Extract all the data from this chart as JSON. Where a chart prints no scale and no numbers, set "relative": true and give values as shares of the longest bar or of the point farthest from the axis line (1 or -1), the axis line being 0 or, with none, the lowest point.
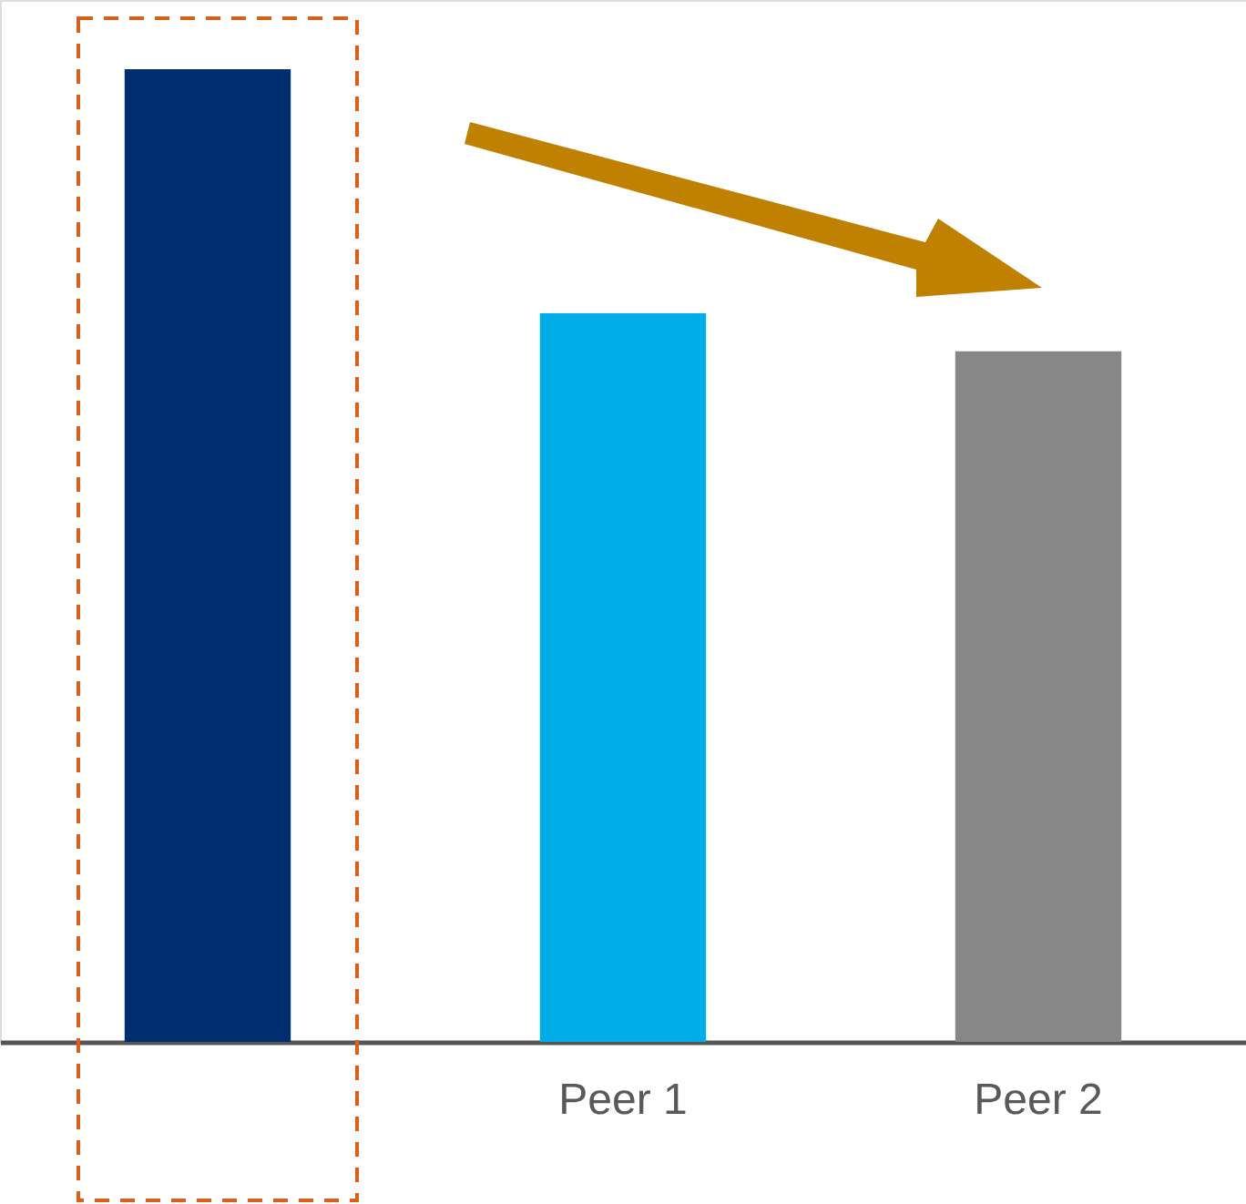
{
  "chart_data": {
    "type": "bar",
    "relative": true,
    "categories": [
      null,
      "Peer 1",
      "Peer 2"
    ],
    "values": [
      1,
      0.749,
      0.71
    ],
    "colors": [
      "#002d6e",
      "#00ade8",
      "#878787"
    ],
    "grid": false
  }
}
